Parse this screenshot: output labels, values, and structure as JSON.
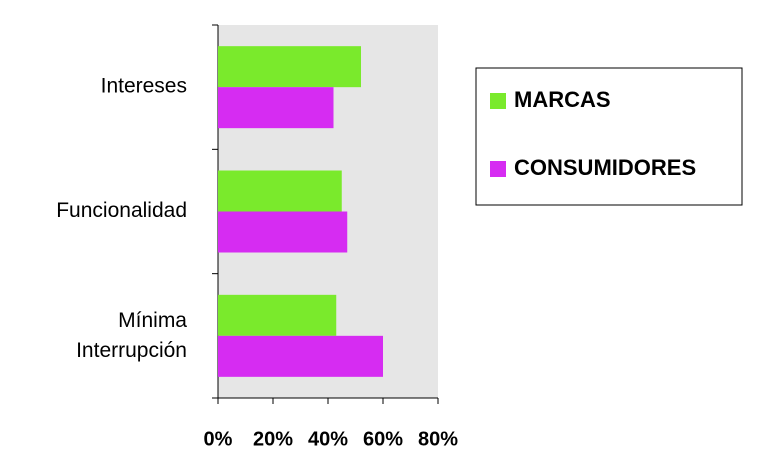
{
  "chart_data": {
    "type": "bar",
    "orientation": "horizontal",
    "categories": [
      "Intereses",
      "Funcionalidad",
      "Mínima Interrupción"
    ],
    "series": [
      {
        "name": "MARCAS",
        "color": "#7aea2c",
        "values": [
          52,
          45,
          43
        ]
      },
      {
        "name": "CONSUMIDORES",
        "color": "#d62cf2",
        "values": [
          42,
          47,
          60
        ]
      }
    ],
    "xlim": [
      0,
      80
    ],
    "xticks": [
      {
        "value": 0,
        "label": "0%"
      },
      {
        "value": 20,
        "label": "20%"
      },
      {
        "value": 40,
        "label": "40%"
      },
      {
        "value": 60,
        "label": "60%"
      },
      {
        "value": 80,
        "label": "80%"
      }
    ],
    "legend": "right"
  }
}
